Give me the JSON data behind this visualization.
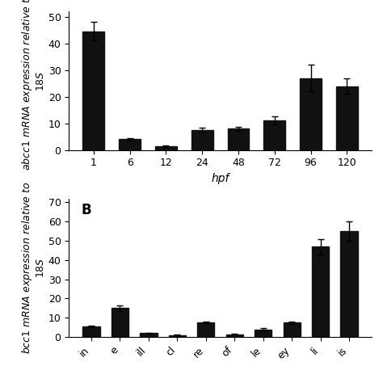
{
  "chart_a": {
    "categories": [
      "1",
      "6",
      "12",
      "24",
      "48",
      "72",
      "96",
      "120"
    ],
    "values": [
      44.5,
      4.0,
      1.5,
      7.5,
      8.0,
      11.0,
      27.0,
      24.0
    ],
    "errors": [
      3.5,
      0.5,
      0.3,
      0.8,
      0.7,
      1.5,
      5.0,
      3.0
    ],
    "xlabel": "hpf",
    "ylim": [
      0,
      52
    ],
    "yticks": [
      0,
      10,
      20,
      30,
      40,
      50
    ]
  },
  "chart_b": {
    "categories": [
      "in",
      "e",
      "ill",
      "cl",
      "re",
      "of",
      "le",
      "ey",
      "li",
      "is"
    ],
    "values": [
      5.5,
      15.0,
      2.0,
      1.0,
      7.5,
      1.5,
      4.0,
      7.5,
      47.0,
      55.0
    ],
    "errors": [
      0.5,
      1.5,
      0.3,
      0.2,
      0.5,
      0.3,
      0.5,
      0.6,
      4.0,
      5.0
    ],
    "ylim": [
      0,
      72
    ],
    "yticks": [
      0,
      10,
      20,
      30,
      40,
      50,
      60,
      70
    ],
    "panel_label": "B"
  },
  "bar_color": "#111111",
  "bar_width": 0.6,
  "background_color": "#ffffff",
  "fig_width": 4.74,
  "fig_height": 4.74
}
